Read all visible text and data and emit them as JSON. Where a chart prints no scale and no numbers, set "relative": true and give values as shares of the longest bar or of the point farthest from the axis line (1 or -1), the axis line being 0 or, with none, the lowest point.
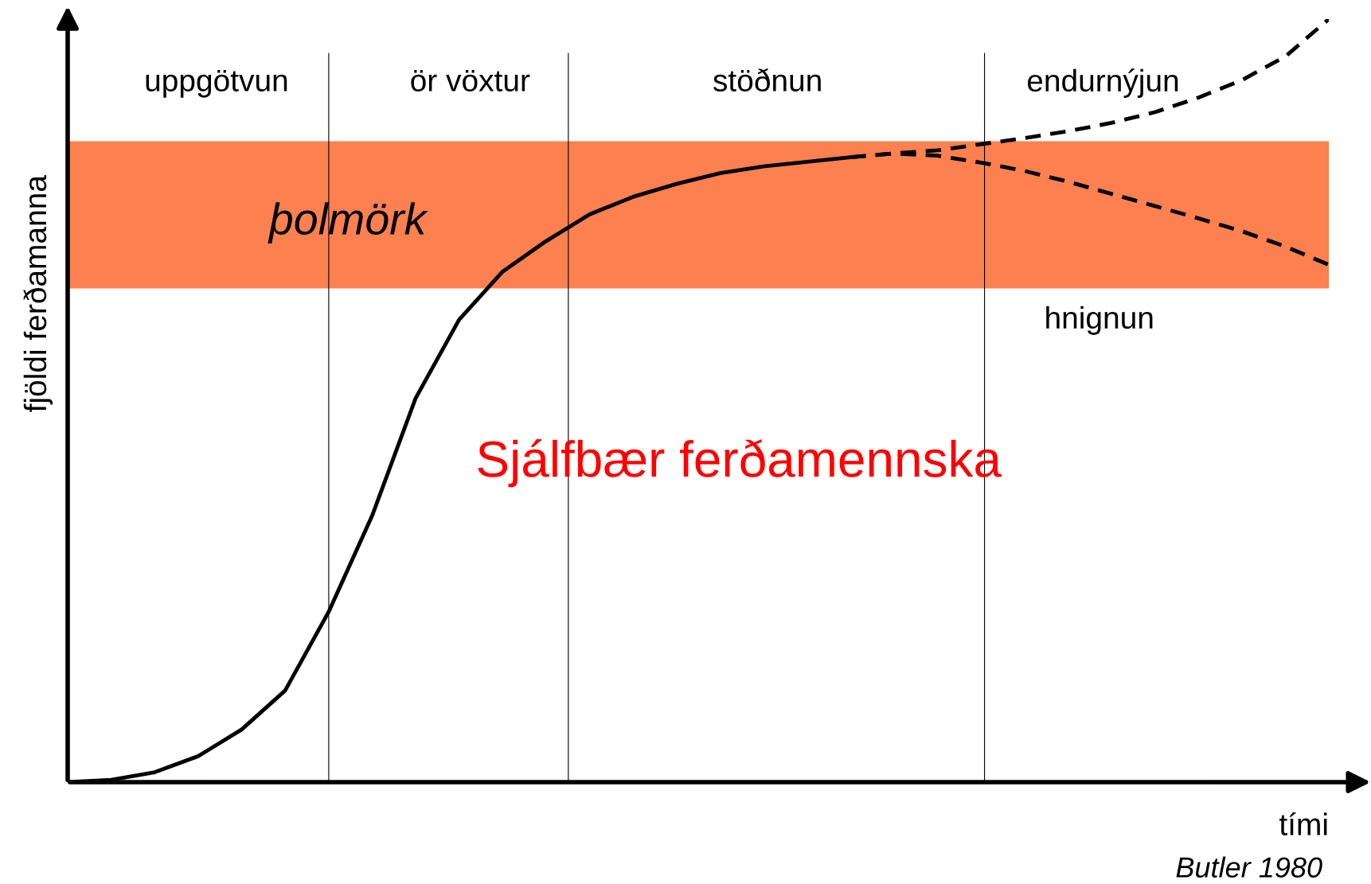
{
  "chart_data": {
    "type": "line",
    "relative": true,
    "xlabel": "tími",
    "ylabel": "fjöldi ferðamanna",
    "categories": [
      null,
      null,
      null,
      null,
      null,
      null,
      null,
      null,
      null,
      null,
      null,
      null,
      null,
      null,
      null,
      null,
      null,
      null,
      null,
      null,
      null,
      null,
      null,
      null,
      null,
      null,
      null,
      null,
      null,
      null
    ],
    "series": [
      {
        "color": "#000000",
        "line_style": "solid",
        "values": [
          0,
          0.003,
          0.013,
          0.034,
          0.069,
          0.12,
          0.223,
          0.349,
          0.503,
          0.606,
          0.669,
          0.709,
          0.744,
          0.767,
          0.784,
          0.798,
          0.807,
          0.813,
          0.819,
          null,
          null,
          null,
          null,
          null,
          null,
          null,
          null,
          null,
          null,
          null
        ]
      },
      {
        "color": "#000000",
        "line_style": "dashed",
        "values": [
          null,
          null,
          null,
          null,
          null,
          null,
          null,
          null,
          null,
          null,
          null,
          null,
          null,
          null,
          null,
          null,
          null,
          null,
          0.819,
          0.824,
          0.828,
          0.836,
          0.844,
          0.853,
          0.864,
          0.878,
          0.897,
          0.92,
          0.951,
          1
        ]
      },
      {
        "color": "#000000",
        "line_style": "dashed",
        "values": [
          null,
          null,
          null,
          null,
          null,
          null,
          null,
          null,
          null,
          null,
          null,
          null,
          null,
          null,
          null,
          null,
          null,
          null,
          0.819,
          0.824,
          0.821,
          0.812,
          0.801,
          0.787,
          0.771,
          0.755,
          0.739,
          0.722,
          0.702,
          0.678
        ]
      }
    ],
    "bands": [
      {
        "axis": "y",
        "from": 0.647,
        "to": 0.84,
        "label": "þolmörk",
        "color": "#fd8050"
      }
    ],
    "annotations": [
      "uppgötvun",
      "ör vöxtur",
      "stöðnun",
      "endurnýjun",
      "hnignun",
      "Sjálfbær ferðamennska",
      "Butler 1980"
    ],
    "legend": false,
    "marker": "none"
  }
}
